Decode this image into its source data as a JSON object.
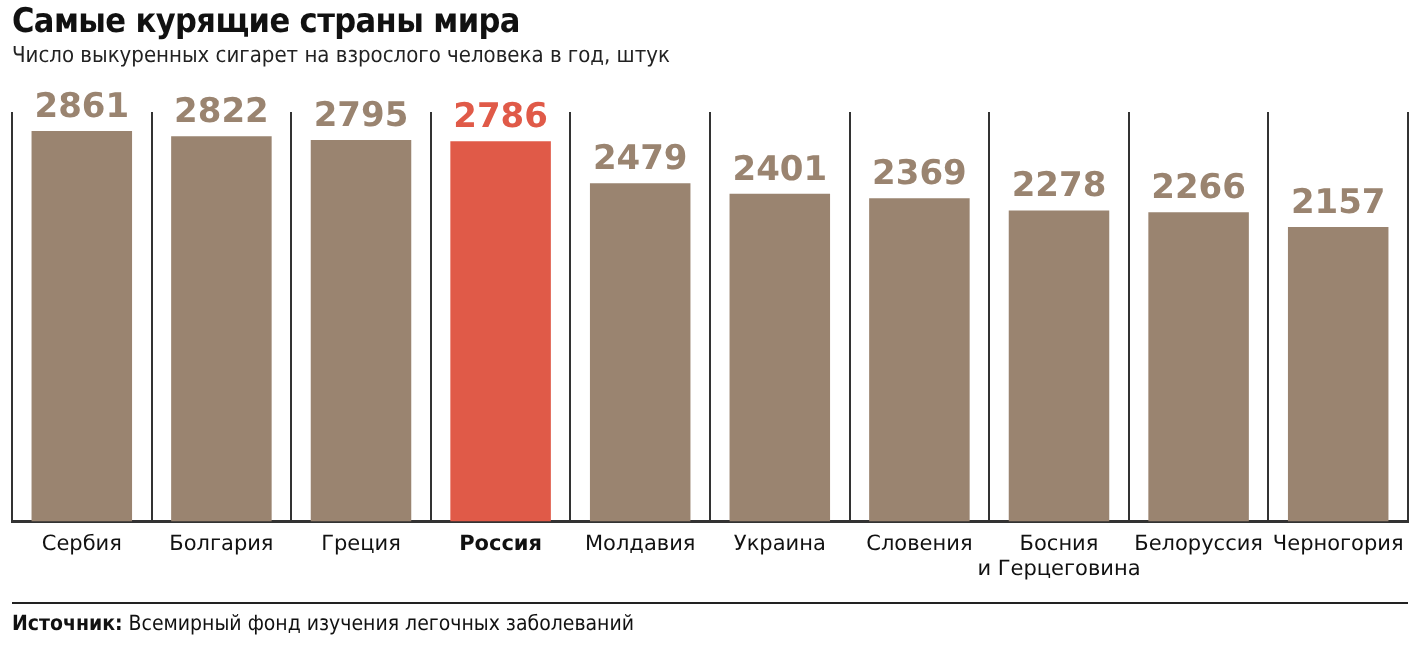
{
  "chart_data": {
    "type": "bar",
    "title": "Самые курящие страны мира",
    "subtitle": "Число выкуренных сигарет на взрослого человека в год, штук",
    "categories": [
      "Сербия",
      "Болгария",
      "Греция",
      "Россия",
      "Молдавия",
      "Украина",
      "Словения",
      "Босния\nи Герцеговина",
      "Белоруссия",
      "Черногория"
    ],
    "values": [
      2861,
      2822,
      2795,
      2786,
      2479,
      2401,
      2369,
      2278,
      2266,
      2157
    ],
    "colors": [
      "#9a8470",
      "#9a8470",
      "#9a8470",
      "#e05a48",
      "#9a8470",
      "#9a8470",
      "#9a8470",
      "#9a8470",
      "#9a8470",
      "#9a8470"
    ],
    "data_labels": true,
    "grid": "x",
    "legend": false,
    "annotations": [
      "Источник: Всемирный фонд изучения легочных заболеваний"
    ]
  }
}
